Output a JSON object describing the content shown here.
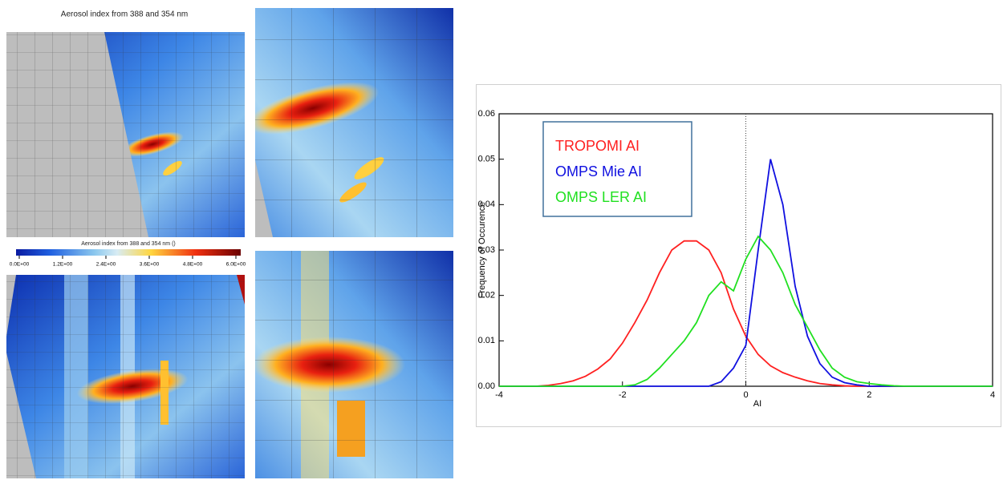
{
  "map_panel": {
    "title": "Aerosol index from 388 and 354 nm",
    "colorbar_title": "Aerosol index from 388 and 354 nm ()",
    "colorbar_lim": [
      0,
      6
    ],
    "colorbar_ticks": [
      {
        "value": 0,
        "label": "0.0E+00"
      },
      {
        "value": 1.2,
        "label": "1.2E+00"
      },
      {
        "value": 2.4,
        "label": "2.4E+00"
      },
      {
        "value": 3.6,
        "label": "3.6E+00"
      },
      {
        "value": 4.8,
        "label": "4.8E+00"
      },
      {
        "value": 6,
        "label": "6.0E+00"
      }
    ]
  },
  "chart_data": {
    "type": "line",
    "step": true,
    "x_label": "AI",
    "y_label": "Frequency of Occurence",
    "x": [
      -4,
      -3.8,
      -3.6,
      -3.4,
      -3.2,
      -3,
      -2.8,
      -2.6,
      -2.4,
      -2.2,
      -2,
      -1.8,
      -1.6,
      -1.4,
      -1.2,
      -1,
      -0.8,
      -0.6,
      -0.4,
      -0.2,
      0,
      0.2,
      0.4,
      0.6,
      0.8,
      1,
      1.2,
      1.4,
      1.6,
      1.8,
      2,
      2.2,
      2.4,
      2.6,
      2.8,
      3,
      3.2,
      3.4,
      3.6,
      3.8,
      4
    ],
    "series": [
      {
        "name": "TROPOMI AI",
        "color": "#ff2020",
        "values": [
          0,
          0,
          0,
          0,
          0.0002,
          0.0006,
          0.0012,
          0.0022,
          0.0038,
          0.006,
          0.0095,
          0.014,
          0.019,
          0.025,
          0.03,
          0.032,
          0.032,
          0.03,
          0.025,
          0.017,
          0.011,
          0.007,
          0.0045,
          0.003,
          0.002,
          0.0012,
          0.0006,
          0.0003,
          0.0001,
          0,
          0,
          0,
          0,
          0,
          0,
          0,
          0,
          0,
          0,
          0,
          0
        ]
      },
      {
        "name": "OMPS Mie AI",
        "color": "#1010e0",
        "values": [
          0,
          0,
          0,
          0,
          0,
          0,
          0,
          0,
          0,
          0,
          0,
          0,
          0,
          0,
          0,
          0,
          0,
          0,
          0.001,
          0.004,
          0.009,
          0.03,
          0.05,
          0.04,
          0.022,
          0.011,
          0.005,
          0.002,
          0.0008,
          0.0003,
          0,
          0,
          0,
          0,
          0,
          0,
          0,
          0,
          0,
          0,
          0
        ]
      },
      {
        "name": "OMPS LER AI",
        "color": "#20e020",
        "values": [
          0,
          0,
          0,
          0,
          0,
          0,
          0,
          0,
          0,
          0,
          0,
          0.0003,
          0.0015,
          0.004,
          0.007,
          0.01,
          0.014,
          0.02,
          0.023,
          0.021,
          0.028,
          0.033,
          0.03,
          0.025,
          0.018,
          0.013,
          0.008,
          0.004,
          0.002,
          0.001,
          0.0006,
          0.0003,
          0.0001,
          0,
          0,
          0,
          0,
          0,
          0,
          0,
          0
        ]
      }
    ],
    "xlim": [
      -4,
      4
    ],
    "ylim": [
      0,
      0.06
    ],
    "xticks": [
      -4,
      -2,
      0,
      2,
      4
    ],
    "yticks": [
      {
        "value": 0,
        "label": "0.00"
      },
      0.01,
      0.02,
      0.03,
      0.04,
      0.05,
      0.06
    ],
    "reference_line_x": 0,
    "legend_position": "upper left"
  }
}
